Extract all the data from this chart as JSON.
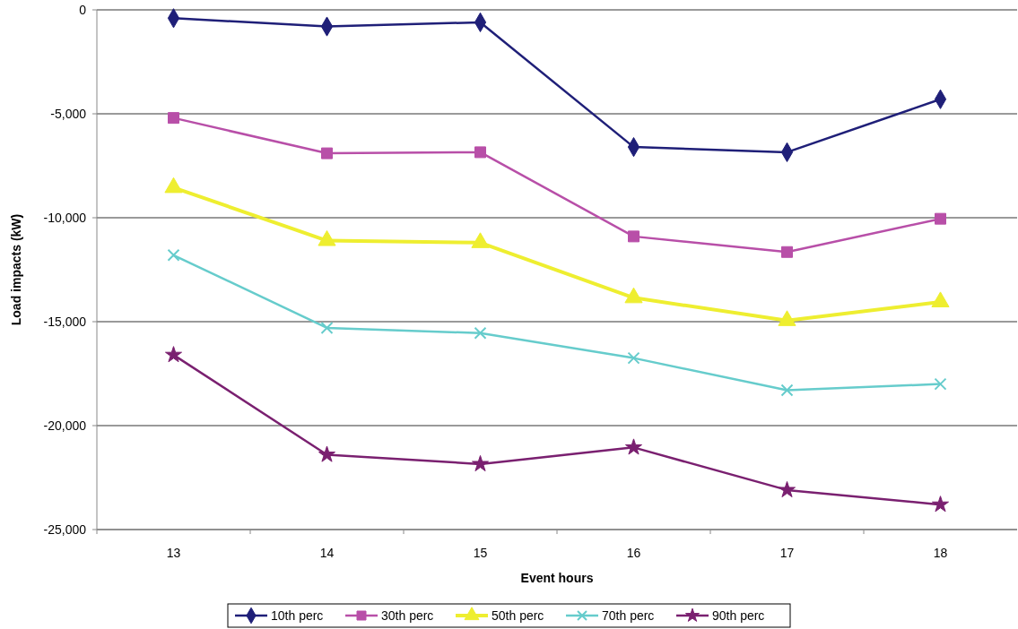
{
  "chart_data": {
    "type": "line",
    "xlabel": "Event hours",
    "ylabel": "Load impacts (kW)",
    "categories": [
      "13",
      "14",
      "15",
      "16",
      "17",
      "18"
    ],
    "ylim": [
      -25000,
      0
    ],
    "yticks": [
      {
        "value": -25000,
        "label": "-25,000"
      },
      {
        "value": -20000,
        "label": "-20,000"
      },
      {
        "value": -15000,
        "label": "-15,000"
      },
      {
        "value": -10000,
        "label": "-10,000"
      },
      {
        "value": -5000,
        "label": "-5,000"
      },
      0
    ],
    "grid": "y",
    "legend": "bottom",
    "line_style": "solid",
    "series": [
      {
        "name": "10th perc",
        "color": "#1f1f78",
        "marker": "diamond",
        "values": [
          -400,
          -800,
          -600,
          -6600,
          -6850,
          -4300
        ]
      },
      {
        "name": "30th perc",
        "color": "#b84fa8",
        "marker": "square",
        "values": [
          -5200,
          -6900,
          -6850,
          -10900,
          -11650,
          -10050
        ]
      },
      {
        "name": "50th perc",
        "color": "#eeee30",
        "marker": "triangle",
        "values": [
          -8550,
          -11100,
          -11200,
          -13850,
          -14950,
          -14050
        ]
      },
      {
        "name": "70th perc",
        "color": "#66cccc",
        "marker": "cross",
        "values": [
          -11800,
          -15300,
          -15550,
          -16750,
          -18300,
          -18000
        ]
      },
      {
        "name": "90th perc",
        "color": "#7a2070",
        "marker": "star",
        "values": [
          -16600,
          -21400,
          -21850,
          -21050,
          -23100,
          -23800
        ]
      }
    ]
  }
}
